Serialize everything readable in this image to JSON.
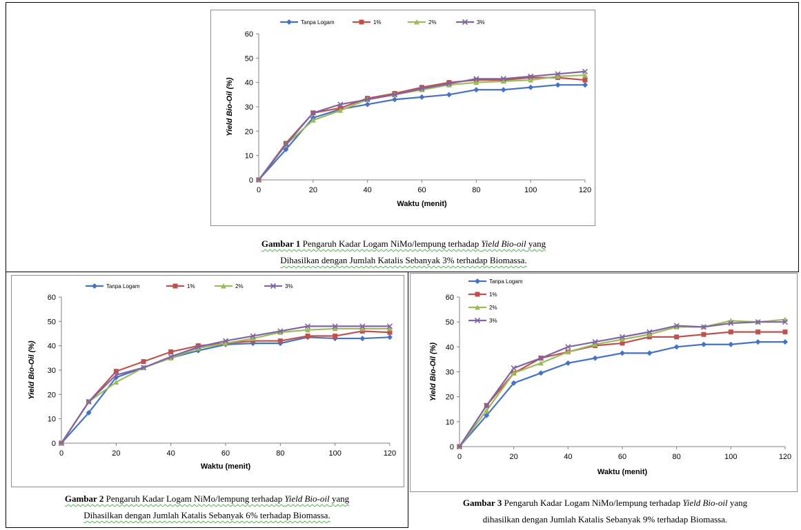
{
  "colors": {
    "s0": "#4472c4",
    "s1": "#c0504d",
    "s2": "#9bbb59",
    "s3": "#8064a2"
  },
  "captions": [
    {
      "label": "Gambar 1",
      "line1_a": " Pengaruh Kadar Logam NiMo/lempung terhadap ",
      "line1_em": "Yield Bio-oil",
      "line1_b": " yang",
      "line2": "Dihasilkan dengan Jumlah Katalis Sebanyak 3% terhadap Biomassa."
    },
    {
      "label": "Gambar 2",
      "line1_a": " Pengaruh Kadar Logam NiMo/lempung terhadap ",
      "line1_em": "Yield Bio-oil",
      "line1_b": " yang",
      "line2": "Dihasilkan dengan Jumlah Katalis Sebanyak 6% terhadap Biomassa."
    },
    {
      "label": "Gambar 3",
      "line1_a": " Pengaruh Kadar Logam NiMo/lempung terhadap ",
      "line1_em": "Yield Bio-oil",
      "line1_b": " yang",
      "line2": "dihasilkan dengan Jumlah Katalis Sebanyak 9% terhadap Biomassa."
    }
  ],
  "chart_data": [
    {
      "type": "line",
      "xlabel": "Waktu (menit)",
      "ylabel": "Yield Bio-Oil (%)",
      "xlim": [
        0,
        120
      ],
      "ylim": [
        0,
        60
      ],
      "x_ticks": [
        0,
        20,
        40,
        60,
        80,
        100,
        120
      ],
      "y_ticks": [
        0,
        10,
        20,
        30,
        40,
        50,
        60
      ],
      "legend": "top-horizontal",
      "grid": false,
      "x": [
        0,
        10,
        20,
        30,
        40,
        50,
        60,
        70,
        80,
        90,
        100,
        110,
        120
      ],
      "series": [
        {
          "name": "Tanpa Logam",
          "values": [
            0,
            12.5,
            25.5,
            29,
            31,
            33,
            34,
            35,
            37,
            37,
            38,
            39,
            39
          ]
        },
        {
          "name": "1%",
          "values": [
            0,
            15,
            27.5,
            29.5,
            33.5,
            35.5,
            38,
            40,
            41,
            41,
            42,
            42,
            41
          ]
        },
        {
          "name": "2%",
          "values": [
            0,
            14.5,
            24.5,
            28.5,
            33,
            35,
            37,
            39,
            40,
            40.5,
            41,
            42.5,
            43
          ]
        },
        {
          "name": "3%",
          "values": [
            0,
            14.5,
            27.5,
            31,
            33,
            35,
            37.5,
            39.5,
            41.5,
            41.5,
            42.5,
            43.5,
            44.5
          ]
        }
      ]
    },
    {
      "type": "line",
      "xlabel": "Waktu (menit)",
      "ylabel": "Yield Bio-Oil (%)",
      "xlim": [
        0,
        120
      ],
      "ylim": [
        0,
        60
      ],
      "x_ticks": [
        0,
        20,
        40,
        60,
        80,
        100,
        120
      ],
      "y_ticks": [
        0,
        10,
        20,
        30,
        40,
        50,
        60
      ],
      "legend": "top-horizontal",
      "grid": false,
      "x": [
        0,
        10,
        20,
        30,
        40,
        50,
        60,
        70,
        80,
        90,
        100,
        110,
        120
      ],
      "series": [
        {
          "name": "Tanpa Logam",
          "values": [
            0,
            12.5,
            27,
            31,
            35,
            38,
            40.5,
            41,
            41,
            43.5,
            43,
            43,
            43.5
          ]
        },
        {
          "name": "1%",
          "values": [
            0,
            17,
            29.5,
            33.5,
            37.5,
            40,
            41,
            42,
            42,
            44,
            44,
            46,
            45.5
          ]
        },
        {
          "name": "2%",
          "values": [
            0,
            17,
            25,
            31,
            35,
            39,
            41,
            43,
            45.5,
            46.5,
            47,
            47,
            47
          ]
        },
        {
          "name": "3%",
          "values": [
            0,
            17,
            28,
            31,
            35.5,
            39.5,
            42,
            44,
            46,
            48,
            48,
            48,
            48
          ]
        }
      ]
    },
    {
      "type": "line",
      "xlabel": "Waktu (menit)",
      "ylabel": "Yield Bio-Oil (%)",
      "xlim": [
        0,
        120
      ],
      "ylim": [
        0,
        60
      ],
      "x_ticks": [
        0,
        20,
        40,
        60,
        80,
        100,
        120
      ],
      "y_ticks": [
        0,
        10,
        20,
        30,
        40,
        50,
        60
      ],
      "legend": "top-left-vertical",
      "grid": false,
      "x": [
        0,
        10,
        20,
        30,
        40,
        50,
        60,
        70,
        80,
        90,
        100,
        110,
        120
      ],
      "series": [
        {
          "name": "Tanpa Logam",
          "values": [
            0,
            12.5,
            25.5,
            29.5,
            33.5,
            35.5,
            37.5,
            37.5,
            40,
            41,
            41,
            42,
            42
          ]
        },
        {
          "name": "1%",
          "values": [
            0,
            16.5,
            29.5,
            35.5,
            38,
            40.5,
            41.5,
            44,
            44,
            45,
            46,
            46,
            46
          ]
        },
        {
          "name": "2%",
          "values": [
            0,
            14.5,
            29.5,
            33.5,
            38,
            41,
            43,
            45,
            48,
            48,
            50.5,
            50,
            51
          ]
        },
        {
          "name": "3%",
          "values": [
            0,
            16.5,
            31.5,
            35.5,
            40,
            42,
            44,
            46,
            48.5,
            48,
            49.5,
            50,
            50
          ]
        }
      ]
    }
  ]
}
